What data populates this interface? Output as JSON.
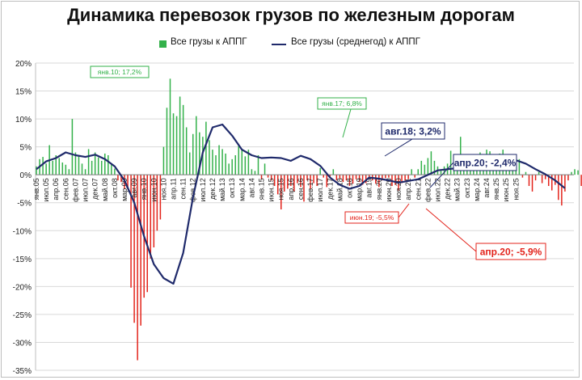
{
  "chart_data": {
    "type": "bar",
    "title": "Динамика перевозок грузов по железным дорогам",
    "ylim": [
      -35,
      20
    ],
    "yticks": [
      "20%",
      "15%",
      "10%",
      "5%",
      "0%",
      "-5%",
      "-10%",
      "-15%",
      "-20%",
      "-25%",
      "-30%",
      "-35%"
    ],
    "grid": true,
    "legend_position": "top",
    "colors": {
      "positive": "#33b14a",
      "negative": "#e3231b",
      "line": "#1f2a6b"
    },
    "x_labels": [
      "янв.05",
      "июл.05",
      "апр.06",
      "сен.06",
      "фев.07",
      "июл.07",
      "дек.07",
      "май.08",
      "окт.08",
      "мар.09",
      "авг.09",
      "янв.10",
      "июн.10",
      "ноя.10",
      "апр.11",
      "сен.11",
      "фев.12",
      "июл.12",
      "дек.12",
      "май.13",
      "окт.13",
      "мар.14",
      "авг.14",
      "янв.15",
      "июн.15",
      "ноя.15",
      "апр.16",
      "сен.16",
      "фев.17",
      "июл.17",
      "дек.17",
      "май.18",
      "окт.18",
      "мар.19",
      "авг.19",
      "янв.20",
      "июн.20",
      "ноя.20",
      "апр.21",
      "сен.21",
      "фев.22",
      "июл.22",
      "дек.22",
      "май.23",
      "окт.23",
      "мар.24",
      "авг.24",
      "янв.25",
      "июн.25",
      "ноя.25"
    ],
    "series": [
      {
        "name": "Все грузы к АППГ",
        "type": "bar",
        "values": [
          1.5,
          2.8,
          3.2,
          2.0,
          5.3,
          2.5,
          3.5,
          3.0,
          2.2,
          1.8,
          1.0,
          10.0,
          4.0,
          3.5,
          2.0,
          1.0,
          4.6,
          2.5,
          4.0,
          3.1,
          2.5,
          3.8,
          3.5,
          2.0,
          1.1,
          -1.0,
          -1.3,
          -2.5,
          -2.6,
          -20.2,
          -26.5,
          -33.2,
          -27.0,
          -22.0,
          -21.0,
          -15.0,
          -13.0,
          -10.0,
          -8.0,
          5.0,
          12.0,
          17.2,
          11.0,
          10.5,
          14.0,
          12.5,
          8.5,
          4.0,
          7.3,
          10.5,
          7.6,
          6.8,
          9.5,
          6.2,
          4.5,
          3.5,
          5.3,
          4.6,
          3.8,
          2.0,
          2.8,
          3.5,
          5.2,
          4.6,
          3.3,
          4.5,
          1.0,
          0.7,
          3.5,
          -0.8,
          2.0,
          -0.5,
          -1.0,
          -2.0,
          -3.5,
          -6.2,
          -3.0,
          -2.5,
          -2.0,
          -3.0,
          -1.5,
          -2.2,
          -4.8,
          -1.0,
          -2.5,
          -1.5,
          -2.0,
          1.2,
          -0.5,
          -2.2,
          -0.5,
          1.0,
          -1.0,
          -0.7,
          -1.3,
          -1.0,
          -2.0,
          -1.6,
          -0.8,
          -1.3,
          -1.8,
          -1.5,
          -0.8,
          -1.0,
          -1.6,
          -2.2,
          -1.0,
          -0.6,
          -0.5,
          -2.0,
          -1.8,
          -2.8,
          -1.5,
          -1.0,
          -0.8,
          1.0,
          -0.5,
          1.0,
          2.5,
          1.8,
          3.0,
          4.2,
          2.5,
          1.5,
          0.7,
          1.5,
          2.0,
          4.3,
          1.8,
          2.0,
          6.8,
          3.5,
          3.0,
          2.2,
          3.0,
          2.8,
          4.0,
          3.5,
          4.5,
          4.2,
          3.5,
          2.0,
          3.8,
          4.5,
          3.0,
          3.5,
          2.8,
          2.0,
          2.8,
          -0.5,
          0.5,
          -2.0,
          -3.0,
          -1.0,
          0.5,
          -1.5,
          -0.8,
          -2.0,
          -2.8,
          -1.8,
          -4.5,
          -5.5,
          -3.0,
          -1.0,
          0.5,
          1.0,
          0.8,
          -2.0,
          -3.0,
          -2.5,
          -4.5,
          -3.5,
          -4.8,
          -5.9
        ]
      },
      {
        "name": "Все грузы (среднегод) к АППГ",
        "type": "line",
        "points": [
          [
            0,
            1.0
          ],
          [
            6,
            2.4
          ],
          [
            12,
            3.0
          ],
          [
            18,
            4.0
          ],
          [
            24,
            3.5
          ],
          [
            30,
            3.2
          ],
          [
            36,
            3.6
          ],
          [
            42,
            2.8
          ],
          [
            48,
            1.5
          ],
          [
            54,
            -1.0
          ],
          [
            60,
            -5.0
          ],
          [
            66,
            -11.0
          ],
          [
            72,
            -16.0
          ],
          [
            78,
            -18.5
          ],
          [
            84,
            -19.5
          ],
          [
            90,
            -14.0
          ],
          [
            96,
            -4.0
          ],
          [
            102,
            4.0
          ],
          [
            108,
            8.5
          ],
          [
            114,
            9.0
          ],
          [
            120,
            7.0
          ],
          [
            126,
            4.5
          ],
          [
            132,
            3.5
          ],
          [
            138,
            3.0
          ],
          [
            144,
            3.1
          ],
          [
            150,
            3.0
          ],
          [
            156,
            2.5
          ],
          [
            162,
            3.4
          ],
          [
            168,
            2.8
          ],
          [
            174,
            1.6
          ],
          [
            180,
            -0.5
          ],
          [
            186,
            -1.8
          ],
          [
            192,
            -2.5
          ],
          [
            198,
            -2.0
          ],
          [
            204,
            -0.5
          ],
          [
            210,
            -0.7
          ],
          [
            216,
            -1.0
          ],
          [
            222,
            -1.4
          ],
          [
            228,
            -1.1
          ],
          [
            234,
            -0.8
          ],
          [
            240,
            0.0
          ],
          [
            246,
            0.8
          ],
          [
            252,
            1.0
          ],
          [
            258,
            1.2
          ],
          [
            264,
            1.5
          ],
          [
            270,
            2.0
          ],
          [
            276,
            2.3
          ],
          [
            282,
            2.8
          ],
          [
            288,
            3.2
          ],
          [
            294,
            2.6
          ],
          [
            300,
            2.0
          ],
          [
            306,
            1.0
          ],
          [
            312,
            0.1
          ],
          [
            318,
            -1.0
          ],
          [
            324,
            -2.4
          ]
        ]
      }
    ],
    "legend": {
      "bar_label": "Все грузы к АППГ",
      "line_label": "Все грузы (среднегод) к АППГ"
    },
    "annotations": [
      {
        "text": "янв.10; 17,2%",
        "style": "green-small"
      },
      {
        "text": "янв.17; 6,8%",
        "style": "green-small"
      },
      {
        "text": "авг.18; 3,2%",
        "style": "navy-big"
      },
      {
        "text": "апр.20; -2,4%",
        "style": "navy-big"
      },
      {
        "text": "июн.19; -5,5%",
        "style": "red-small"
      },
      {
        "text": "апр.20; -5,9%",
        "style": "red-big"
      }
    ]
  }
}
